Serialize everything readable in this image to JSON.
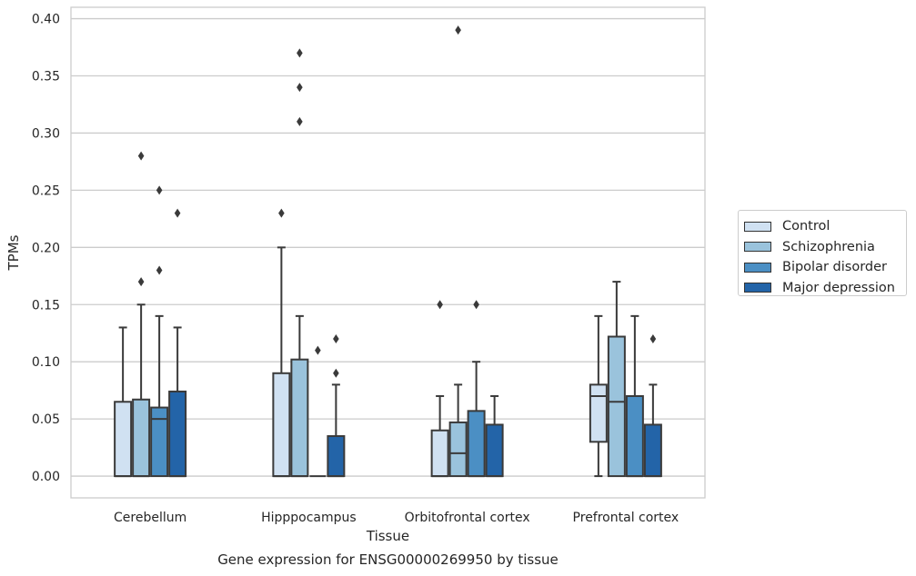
{
  "chart_data": {
    "type": "box",
    "title": "Gene expression for ENSG00000269950 by tissue",
    "xlabel": "Tissue",
    "ylabel": "TPMs",
    "ylim": [
      -0.019,
      0.41
    ],
    "yticks": [
      "0.00",
      "0.05",
      "0.10",
      "0.15",
      "0.20",
      "0.25",
      "0.30",
      "0.35",
      "0.40"
    ],
    "grid": true,
    "legend_position": "right",
    "categories": [
      "Cerebellum",
      "Hipppocampus",
      "Orbitofrontal cortex",
      "Prefrontal cortex"
    ],
    "series": [
      {
        "name": "Control",
        "color": "#d0e1f2",
        "boxes": [
          {
            "q1": 0.0,
            "median": 0.0,
            "q3": 0.065,
            "whisker_low": 0.0,
            "whisker_high": 0.13,
            "outliers": []
          },
          {
            "q1": 0.0,
            "median": 0.0,
            "q3": 0.09,
            "whisker_low": 0.0,
            "whisker_high": 0.2,
            "outliers": [
              0.23
            ]
          },
          {
            "q1": 0.0,
            "median": 0.0,
            "q3": 0.04,
            "whisker_low": 0.0,
            "whisker_high": 0.07,
            "outliers": [
              0.15
            ]
          },
          {
            "q1": 0.03,
            "median": 0.07,
            "q3": 0.08,
            "whisker_low": 0.0,
            "whisker_high": 0.14,
            "outliers": []
          }
        ]
      },
      {
        "name": "Schizophrenia",
        "color": "#9ac3dc",
        "boxes": [
          {
            "q1": 0.0,
            "median": 0.0,
            "q3": 0.067,
            "whisker_low": 0.0,
            "whisker_high": 0.15,
            "outliers": [
              0.17,
              0.28
            ]
          },
          {
            "q1": 0.0,
            "median": 0.0,
            "q3": 0.102,
            "whisker_low": 0.0,
            "whisker_high": 0.14,
            "outliers": [
              0.31,
              0.34,
              0.37
            ]
          },
          {
            "q1": 0.0,
            "median": 0.02,
            "q3": 0.047,
            "whisker_low": 0.0,
            "whisker_high": 0.08,
            "outliers": [
              0.39
            ]
          },
          {
            "q1": 0.0,
            "median": 0.065,
            "q3": 0.122,
            "whisker_low": 0.0,
            "whisker_high": 0.17,
            "outliers": []
          }
        ]
      },
      {
        "name": "Bipolar disorder",
        "color": "#4b8fc4",
        "boxes": [
          {
            "q1": 0.0,
            "median": 0.05,
            "q3": 0.06,
            "whisker_low": 0.0,
            "whisker_high": 0.14,
            "outliers": [
              0.18,
              0.25
            ]
          },
          {
            "q1": 0.0,
            "median": 0.0,
            "q3": 0.0,
            "whisker_low": 0.0,
            "whisker_high": 0.0,
            "outliers": [
              0.11
            ]
          },
          {
            "q1": 0.0,
            "median": 0.0,
            "q3": 0.057,
            "whisker_low": 0.0,
            "whisker_high": 0.1,
            "outliers": [
              0.15
            ]
          },
          {
            "q1": 0.0,
            "median": 0.0,
            "q3": 0.07,
            "whisker_low": 0.0,
            "whisker_high": 0.14,
            "outliers": []
          }
        ]
      },
      {
        "name": "Major depression",
        "color": "#2364a8",
        "boxes": [
          {
            "q1": 0.0,
            "median": 0.0,
            "q3": 0.074,
            "whisker_low": 0.0,
            "whisker_high": 0.13,
            "outliers": [
              0.23
            ]
          },
          {
            "q1": 0.0,
            "median": 0.0,
            "q3": 0.035,
            "whisker_low": 0.0,
            "whisker_high": 0.08,
            "outliers": [
              0.09,
              0.12
            ]
          },
          {
            "q1": 0.0,
            "median": 0.0,
            "q3": 0.045,
            "whisker_low": 0.0,
            "whisker_high": 0.07,
            "outliers": []
          },
          {
            "q1": 0.0,
            "median": 0.0,
            "q3": 0.045,
            "whisker_low": 0.0,
            "whisker_high": 0.08,
            "outliers": [
              0.12
            ]
          }
        ]
      }
    ]
  }
}
